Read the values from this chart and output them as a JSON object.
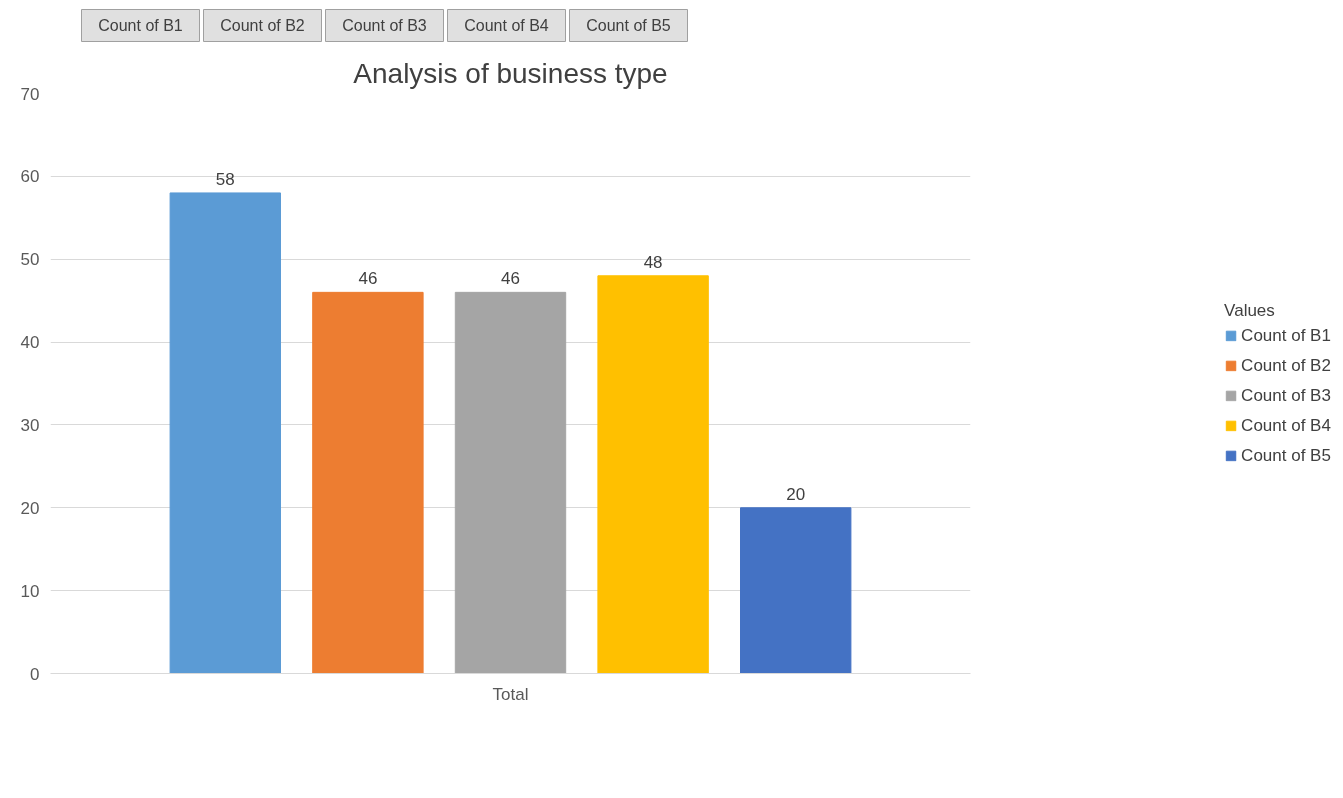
{
  "chart_data": {
    "type": "bar",
    "title": "Analysis of business type",
    "categories": [
      "Total"
    ],
    "series": [
      {
        "name": "Count of B1",
        "color": "#5b9bd5",
        "values": [
          58
        ]
      },
      {
        "name": "Count of B2",
        "color": "#ed7d31",
        "values": [
          46
        ]
      },
      {
        "name": "Count of B3",
        "color": "#a5a5a5",
        "values": [
          46
        ]
      },
      {
        "name": "Count of B4",
        "color": "#ffc000",
        "values": [
          48
        ]
      },
      {
        "name": "Count of B5",
        "color": "#4472c4",
        "values": [
          20
        ]
      }
    ],
    "legend_title": "Values",
    "annotations": [
      "Count of B1",
      "Count of B2",
      "Count of B3",
      "Count of B4",
      "Count of B5"
    ],
    "ylim": [
      0,
      70
    ],
    "yticks": [
      0,
      10,
      20,
      30,
      40,
      50,
      60,
      70
    ],
    "grid": "y",
    "legend": "right",
    "data_labels": true
  }
}
